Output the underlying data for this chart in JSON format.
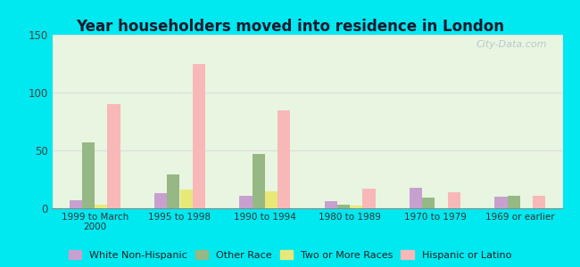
{
  "title": "Year householders moved into residence in London",
  "categories": [
    "1999 to March\n2000",
    "1995 to 1998",
    "1990 to 1994",
    "1980 to 1989",
    "1970 to 1979",
    "1969 or earlier"
  ],
  "series": {
    "White Non-Hispanic": [
      7,
      13,
      11,
      6,
      18,
      10
    ],
    "Other Race": [
      57,
      29,
      47,
      3,
      9,
      11
    ],
    "Two or More Races": [
      3,
      16,
      15,
      2,
      0,
      0
    ],
    "Hispanic or Latino": [
      90,
      125,
      85,
      17,
      14,
      11
    ]
  },
  "colors": {
    "White Non-Hispanic": "#c8a0d0",
    "Other Race": "#96b884",
    "Two or More Races": "#e8e878",
    "Hispanic or Latino": "#f8b8b8"
  },
  "ylim": [
    0,
    150
  ],
  "yticks": [
    0,
    50,
    100,
    150
  ],
  "background_outer": "#00e8f0",
  "background_inner_top": "#e8f5e0",
  "background_inner_bottom": "#f8fff8",
  "watermark": "City-Data.com",
  "bar_width": 0.15
}
